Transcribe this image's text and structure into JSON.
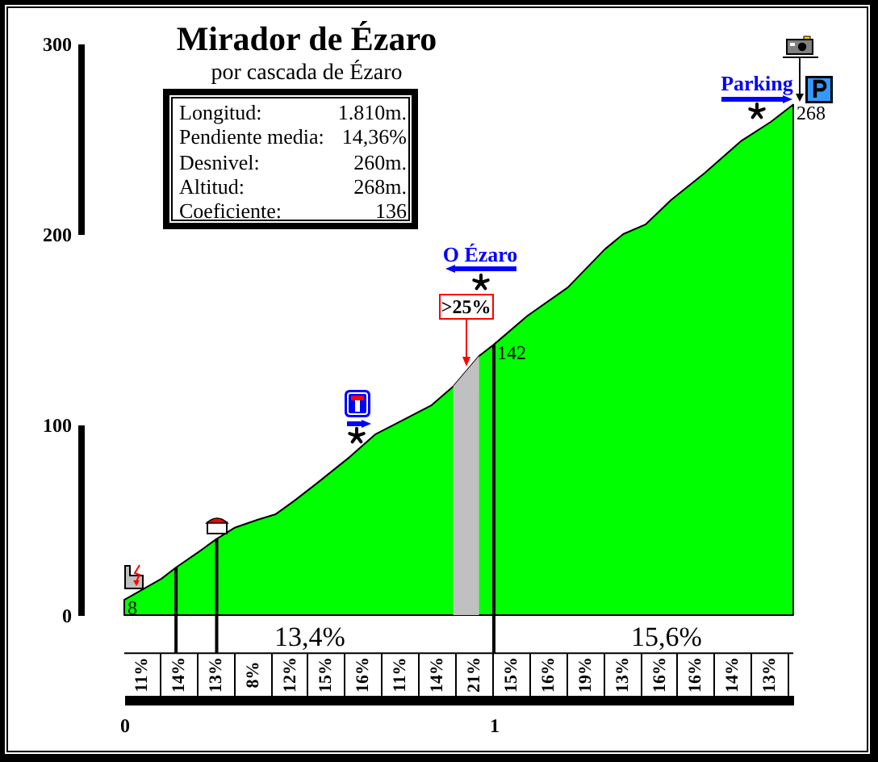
{
  "chart_data": {
    "type": "area",
    "title": "Mirador de Ézaro",
    "subtitle": "por cascada de Ézaro",
    "x": [
      0,
      0.1,
      0.14,
      0.2,
      0.25,
      0.3,
      0.36,
      0.41,
      0.46,
      0.52,
      0.61,
      0.68,
      0.75,
      0.83,
      0.89,
      0.96,
      1,
      1.09,
      1.2,
      1.3,
      1.35,
      1.41,
      1.48,
      1.57,
      1.67,
      1.75,
      1.81
    ],
    "values": [
      8,
      19,
      25,
      33,
      40,
      46,
      50,
      53,
      60,
      69,
      83,
      95,
      102,
      110,
      120,
      136,
      142,
      157,
      172,
      192,
      200,
      205,
      218,
      232,
      249,
      259,
      268
    ],
    "value_labels": [
      "8",
      null,
      null,
      null,
      null,
      null,
      null,
      null,
      null,
      null,
      null,
      null,
      null,
      null,
      null,
      null,
      "142",
      null,
      null,
      null,
      null,
      null,
      null,
      null,
      null,
      null,
      "268"
    ],
    "color": "#00ff00",
    "xlim": [
      0,
      1.81
    ],
    "xticks": [
      0,
      1
    ],
    "ylim": [
      -42,
      300
    ],
    "yticks": [
      0,
      100,
      200,
      300
    ],
    "bands": [
      {
        "axis": "x",
        "from": 0.89,
        "to": 0.96,
        "label": ">25%",
        "color": "#c0c0c0"
      }
    ],
    "ref_lines": [
      {
        "axis": "y",
        "value": -20,
        "color": "#000000"
      },
      {
        "axis": "x",
        "value": 0.14,
        "color": "#000000"
      },
      {
        "axis": "x",
        "value": 0.25,
        "color": "#000000"
      },
      {
        "axis": "x",
        "value": 1,
        "color": "#000000"
      }
    ],
    "annotations": [
      "Longitud:",
      "1.810m.",
      "Pendiente media:",
      "14,36%",
      "Desnivel:",
      "260m.",
      "Altitud:",
      "268m.",
      "Coeficiente:",
      "136",
      "Parking",
      "O Ézaro",
      "13,4%",
      "15,6%",
      "11%",
      "14%",
      "13%",
      "8%",
      "12%",
      "15%",
      "16%",
      "11%",
      "14%",
      "21%",
      "15%",
      "16%",
      "19%",
      "13%",
      "16%",
      "16%",
      "14%",
      "13%"
    ]
  }
}
